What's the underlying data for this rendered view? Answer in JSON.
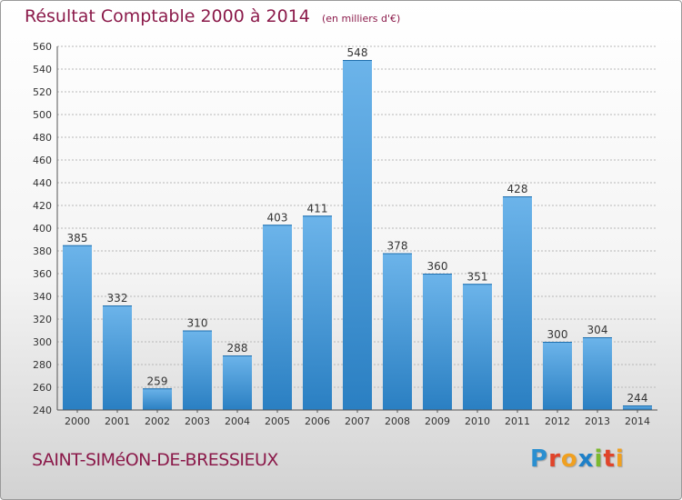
{
  "header": {
    "title": "Résultat Comptable 2000 à 2014",
    "subtitle": "(en milliers d'€)"
  },
  "footer": {
    "place_name": "SAINT-SIMéON-DE-BRESSIEUX",
    "logo_letters": [
      "P",
      "r",
      "o",
      "x",
      "i",
      "t",
      "i"
    ],
    "logo_colors": [
      "#2a8fd0",
      "#e0442a",
      "#f0a020",
      "#1e80c8",
      "#7cb82f",
      "#e0442a",
      "#f0a020"
    ]
  },
  "chart_data": {
    "type": "bar",
    "categories": [
      "2000",
      "2001",
      "2002",
      "2003",
      "2004",
      "2005",
      "2006",
      "2007",
      "2008",
      "2009",
      "2010",
      "2011",
      "2012",
      "2013",
      "2014"
    ],
    "values": [
      385,
      332,
      259,
      310,
      288,
      403,
      411,
      548,
      378,
      360,
      351,
      428,
      300,
      304,
      244
    ],
    "ylim": [
      240,
      560
    ],
    "yticks": [
      240,
      260,
      280,
      300,
      320,
      340,
      360,
      380,
      400,
      420,
      440,
      460,
      480,
      500,
      520,
      540,
      560
    ],
    "grid": true,
    "bar_color_light": "#6cb4ea",
    "bar_color_dark": "#2a7fc2",
    "xlabel": "",
    "ylabel": ""
  }
}
